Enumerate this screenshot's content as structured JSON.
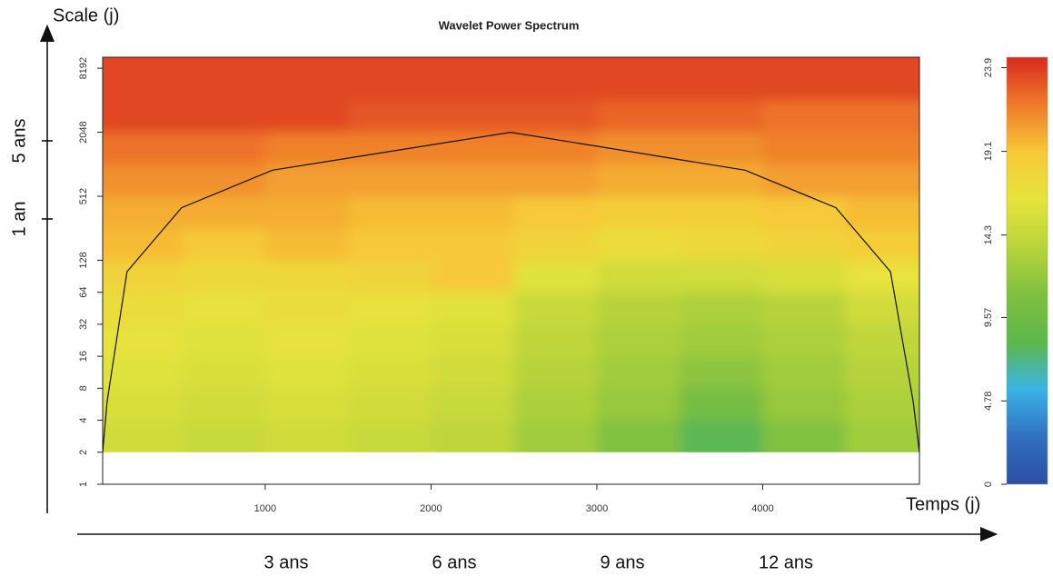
{
  "chart_data": {
    "type": "heatmap",
    "title": "Wavelet Power Spectrum",
    "x": [
      250,
      750,
      1250,
      1750,
      2250,
      2750,
      3250,
      3750,
      4250,
      4750
    ],
    "y": [
      2,
      4,
      8,
      16,
      32,
      64,
      128,
      256,
      512,
      1024,
      2048,
      4096,
      8192
    ],
    "values": [
      [
        15,
        14.5,
        15,
        14.5,
        14,
        12.5,
        11,
        8,
        11,
        12.5
      ],
      [
        15.5,
        15,
        15.5,
        15,
        14.5,
        13,
        12,
        10,
        12,
        13
      ],
      [
        16,
        15.5,
        16,
        15.5,
        15,
        13.5,
        12.5,
        11.5,
        12.5,
        13.5
      ],
      [
        16.5,
        16,
        16.5,
        16,
        15.5,
        14,
        13,
        12.5,
        13,
        14
      ],
      [
        17,
        16.5,
        17,
        16.5,
        16,
        14.5,
        13.5,
        13,
        13.5,
        15
      ],
      [
        18,
        17.5,
        17.5,
        18,
        19,
        16,
        15,
        15,
        15.5,
        16.5
      ],
      [
        19.5,
        19,
        19.5,
        19,
        19,
        18,
        17,
        17.5,
        18,
        18.5
      ],
      [
        20,
        20,
        20,
        19.5,
        19.5,
        19,
        18.5,
        18.5,
        19,
        19.5
      ],
      [
        21,
        21,
        20.5,
        20.5,
        20.5,
        20.5,
        20,
        20,
        20.5,
        20.5
      ],
      [
        22,
        22,
        21.5,
        21.5,
        21.5,
        21.5,
        21,
        21,
        21.5,
        21.5
      ],
      [
        23.5,
        23.5,
        23.5,
        23,
        23,
        23,
        22.5,
        22.5,
        22,
        22
      ],
      [
        23.5,
        23.5,
        23.5,
        23.5,
        23.5,
        23.5,
        23.5,
        23.5,
        23.5,
        23.5
      ],
      [
        23.5,
        23.5,
        23.5,
        23.5,
        23.5,
        23.5,
        23.5,
        23.5,
        23.5,
        23.5
      ]
    ],
    "xlim": [
      20,
      4945
    ],
    "xticks": [
      1000,
      2000,
      3000,
      4000
    ],
    "ylim": [
      1,
      10400
    ],
    "yticks": [
      1,
      2,
      4,
      8,
      16,
      32,
      64,
      128,
      512,
      2048,
      8192
    ],
    "log_y": true,
    "clim": [
      0,
      24.5
    ],
    "colorbar_ticks": [
      0,
      4.78,
      9.57,
      14.3,
      19.1,
      23.9
    ],
    "colors": [
      "#2c4ea3",
      "#3070c0",
      "#3bb3e6",
      "#5db84a",
      "#7fc040",
      "#b9d43a",
      "#e6e43c",
      "#f7c838",
      "#ef7a2a",
      "#d82a1f"
    ],
    "coi": {
      "x": [
        20,
        47,
        167,
        496,
        1044,
        2480,
        3893,
        4441,
        4770,
        4907,
        4945
      ],
      "y": [
        2,
        6,
        100,
        400,
        900,
        2048,
        900,
        400,
        100,
        6,
        2
      ]
    },
    "annotations": {
      "scale_label": "Scale (j)",
      "time_label": "Temps (j)",
      "five_years": "5 ans",
      "one_year": "1 an",
      "three_years": "3 ans",
      "six_years": "6 ans",
      "nine_years": "9 ans",
      "twelve_years": "12 ans"
    }
  }
}
